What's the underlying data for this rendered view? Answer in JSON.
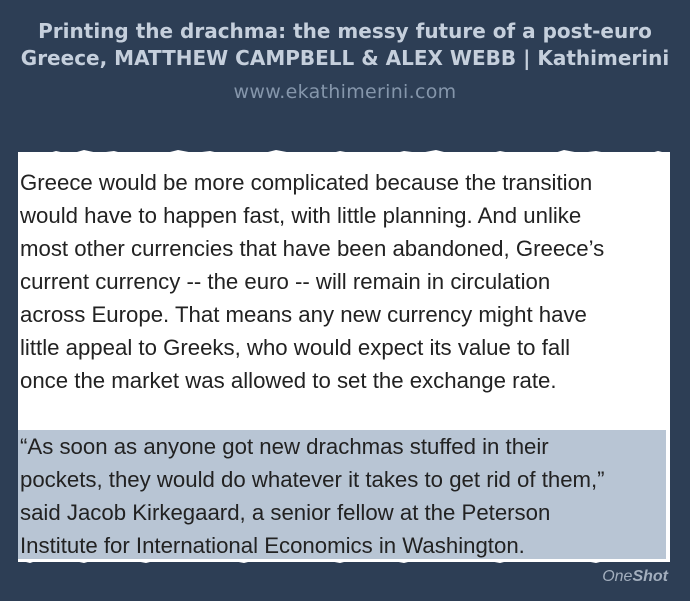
{
  "header": {
    "title": "Printing the drachma: the messy future of a post-euro Greece, MATTHEW CAMPBELL & ALEX WEBB | Kathimerini",
    "source": "www.ekathimerini.com"
  },
  "quote": {
    "paragraph_1": "Greece would be more complicated because the transition\nwould have to happen fast, with little planning. And unlike\nmost other currencies that have been abandoned, Greece’s\ncurrent currency -- the euro -- will remain in circulation\nacross Europe. That means any new currency might have\nlittle appeal to Greeks, who would expect its value to fall\nonce the market was allowed to set the exchange rate.",
    "paragraph_2": "“As soon as anyone got new drachmas stuffed in their\npockets, they would do whatever it takes to get rid of them,”\nsaid Jacob Kirkegaard, a senior fellow at the Peterson\nInstitute for International Economics in Washington."
  },
  "branding": {
    "prefix": "One",
    "suffix": "Shot"
  },
  "colors": {
    "background": "#2d3e55",
    "title": "#c5cfdc",
    "source": "#8596ab",
    "highlight": "#b8c5d4"
  }
}
